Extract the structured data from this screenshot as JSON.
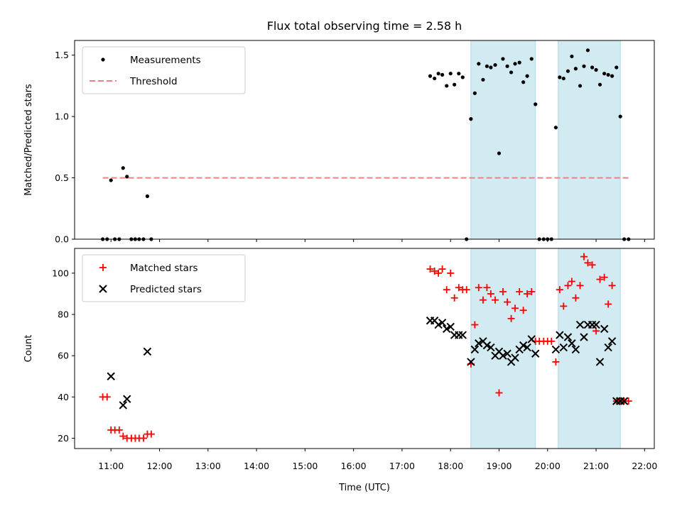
{
  "chart_data": {
    "title": "Flux total observing time = 2.58 h",
    "xlabel": "Time (UTC)",
    "x_tick_labels": [
      "11:00",
      "12:00",
      "13:00",
      "14:00",
      "15:00",
      "16:00",
      "17:00",
      "18:00",
      "19:00",
      "20:00",
      "21:00",
      "22:00"
    ],
    "x_range_hours": [
      10.25,
      22.2
    ],
    "shaded_intervals_hours": [
      [
        18.42,
        19.75
      ],
      [
        20.22,
        21.5
      ]
    ],
    "shade_color": "#add8e6",
    "panels": [
      {
        "type": "scatter",
        "ylabel": "Matched/Predicted stars",
        "ylim": [
          0,
          1.62
        ],
        "y_ticks": [
          0.0,
          0.5,
          1.0,
          1.5
        ],
        "y_tick_labels": [
          "0.0",
          "0.5",
          "1.0",
          "1.5"
        ],
        "legend_position": "top-left",
        "series": [
          {
            "name": "Measurements",
            "marker": "dot",
            "color": "#000000",
            "x": [
              10.83,
              10.92,
              11.0,
              11.08,
              11.17,
              11.25,
              11.33,
              11.42,
              11.5,
              11.58,
              11.67,
              11.75,
              11.83,
              17.58,
              17.67,
              17.75,
              17.83,
              17.92,
              18.0,
              18.08,
              18.17,
              18.25,
              18.33,
              18.42,
              18.5,
              18.58,
              18.67,
              18.75,
              18.83,
              18.92,
              19.0,
              19.08,
              19.17,
              19.25,
              19.33,
              19.42,
              19.5,
              19.58,
              19.67,
              19.75,
              19.83,
              19.92,
              20.0,
              20.08,
              20.17,
              20.25,
              20.33,
              20.42,
              20.5,
              20.58,
              20.67,
              20.75,
              20.83,
              20.92,
              21.0,
              21.08,
              21.17,
              21.25,
              21.33,
              21.42,
              21.5,
              21.58,
              21.67
            ],
            "y": [
              0.0,
              0.0,
              0.48,
              0.0,
              0.0,
              0.58,
              0.51,
              0.0,
              0.0,
              0.0,
              0.0,
              0.35,
              0.0,
              1.33,
              1.31,
              1.35,
              1.34,
              1.25,
              1.35,
              1.26,
              1.35,
              1.32,
              0.0,
              0.98,
              1.19,
              1.43,
              1.3,
              1.41,
              1.4,
              1.42,
              0.7,
              1.47,
              1.41,
              1.36,
              1.43,
              1.44,
              1.28,
              1.33,
              1.47,
              1.1,
              0.0,
              0.0,
              0.0,
              0.0,
              0.91,
              1.32,
              1.31,
              1.37,
              1.49,
              1.39,
              1.25,
              1.41,
              1.54,
              1.4,
              1.38,
              1.26,
              1.35,
              1.34,
              1.33,
              1.4,
              1.0,
              0.0,
              0.0
            ]
          },
          {
            "name": "Threshold",
            "marker": "dashed-line",
            "color": "#f08080",
            "x": [
              10.83,
              21.67
            ],
            "y": [
              0.5,
              0.5
            ]
          }
        ]
      },
      {
        "type": "scatter",
        "ylabel": "Count",
        "ylim": [
          15,
          112
        ],
        "y_ticks": [
          20,
          40,
          60,
          80,
          100
        ],
        "y_tick_labels": [
          "20",
          "40",
          "60",
          "80",
          "100"
        ],
        "legend_position": "top-left",
        "series": [
          {
            "name": "Matched stars",
            "marker": "plus",
            "color": "#ff0000",
            "x": [
              10.83,
              10.92,
              11.0,
              11.08,
              11.17,
              11.25,
              11.33,
              11.42,
              11.5,
              11.58,
              11.67,
              11.75,
              11.83,
              17.58,
              17.67,
              17.75,
              17.83,
              17.92,
              18.0,
              18.08,
              18.17,
              18.25,
              18.33,
              18.42,
              18.5,
              18.58,
              18.67,
              18.75,
              18.83,
              18.92,
              19.0,
              19.08,
              19.17,
              19.25,
              19.33,
              19.42,
              19.5,
              19.58,
              19.67,
              19.75,
              19.83,
              19.92,
              20.0,
              20.08,
              20.17,
              20.25,
              20.33,
              20.42,
              20.5,
              20.58,
              20.67,
              20.75,
              20.83,
              20.92,
              21.0,
              21.08,
              21.17,
              21.25,
              21.33,
              21.42,
              21.5,
              21.58,
              21.67
            ],
            "y": [
              40,
              40,
              24,
              24,
              24,
              21,
              20,
              20,
              20,
              20,
              20,
              22,
              22,
              102,
              101,
              100,
              102,
              92,
              100,
              88,
              93,
              92,
              92,
              56,
              75,
              93,
              87,
              93,
              90,
              87,
              42,
              91,
              86,
              78,
              83,
              91,
              82,
              90,
              91,
              67,
              67,
              67,
              67,
              67,
              57,
              92,
              84,
              94,
              96,
              88,
              94,
              108,
              105,
              104,
              72,
              97,
              98,
              85,
              94,
              38,
              38,
              38,
              38
            ]
          },
          {
            "name": "Predicted stars",
            "marker": "x",
            "color": "#000000",
            "x": [
              11.0,
              11.25,
              11.33,
              11.75,
              17.58,
              17.67,
              17.75,
              17.83,
              17.92,
              18.0,
              18.08,
              18.17,
              18.25,
              18.42,
              18.5,
              18.58,
              18.67,
              18.75,
              18.83,
              18.92,
              19.0,
              19.08,
              19.17,
              19.25,
              19.33,
              19.42,
              19.5,
              19.58,
              19.67,
              19.75,
              20.17,
              20.25,
              20.33,
              20.42,
              20.5,
              20.58,
              20.67,
              20.75,
              20.83,
              20.92,
              21.0,
              21.08,
              21.17,
              21.25,
              21.33,
              21.42,
              21.5,
              21.58
            ],
            "y": [
              50,
              36,
              39,
              62,
              77,
              77,
              75,
              76,
              73,
              74,
              70,
              70,
              70,
              57,
              63,
              66,
              67,
              65,
              64,
              60,
              62,
              60,
              61,
              57,
              59,
              63,
              65,
              64,
              68,
              61,
              63,
              70,
              64,
              69,
              66,
              63,
              75,
              69,
              75,
              75,
              75,
              57,
              73,
              64,
              67,
              38,
              38,
              38
            ]
          }
        ]
      }
    ]
  }
}
